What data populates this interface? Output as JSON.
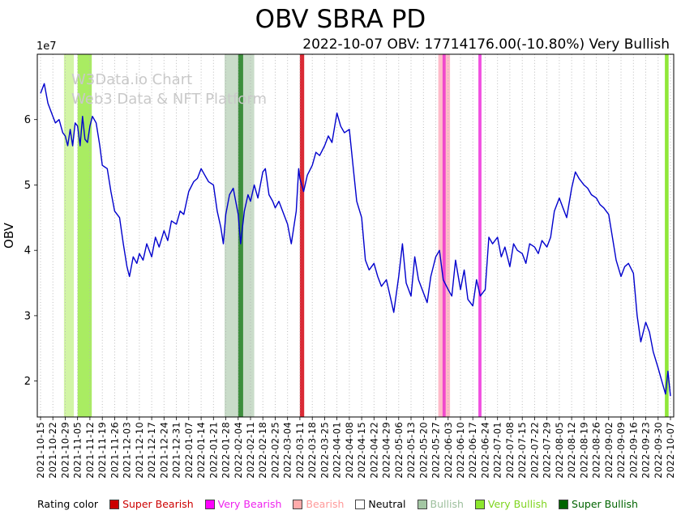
{
  "watermark": {
    "line1": "W3Data.io Chart",
    "line2": "Web3 Data & NFT Platform"
  },
  "legend": {
    "label": "Rating color",
    "items": [
      {
        "label": "Super Bearish",
        "color": "#cc0000",
        "text_color": "#cc0000"
      },
      {
        "label": "Very Bearish",
        "color": "#ff00ff",
        "text_color": "#ee22ee"
      },
      {
        "label": "Bearish",
        "color": "#ffaaaa",
        "text_color": "#ff9999"
      },
      {
        "label": "Neutral",
        "color": "#ffffff",
        "text_color": "#000000"
      },
      {
        "label": "Bullish",
        "color": "#a3c6a3",
        "text_color": "#9dbf9d"
      },
      {
        "label": "Very Bullish",
        "color": "#8ce62e",
        "text_color": "#7fd41f"
      },
      {
        "label": "Super Bullish",
        "color": "#006400",
        "text_color": "#006400"
      }
    ]
  },
  "chart_data": {
    "type": "line",
    "title": "OBV SBRA PD",
    "subtitle": "2022-10-07 OBV: 17714176.00(-10.80%) Very Bullish",
    "ylabel": "OBV",
    "y_multiplier_label": "1e7",
    "units": "1e7",
    "ylim": [
      1.45,
      7.0
    ],
    "y_ticks": [
      2,
      3,
      4,
      5,
      6
    ],
    "line_color": "#0000cd",
    "grid_color": "#b3b3b3",
    "grid": "vertical-dotted",
    "legend_position": "bottom",
    "x_unit": "weeks since first tick",
    "x_tick_labels": [
      "2021-10-15",
      "2021-10-22",
      "2021-10-29",
      "2021-11-05",
      "2021-11-12",
      "2021-11-19",
      "2021-11-26",
      "2021-12-03",
      "2021-12-10",
      "2021-12-17",
      "2021-12-24",
      "2021-12-31",
      "2022-01-07",
      "2022-01-14",
      "2022-01-21",
      "2022-01-28",
      "2022-02-04",
      "2022-02-11",
      "2022-02-18",
      "2022-02-25",
      "2022-03-04",
      "2022-03-11",
      "2022-03-18",
      "2022-03-25",
      "2022-04-01",
      "2022-04-08",
      "2022-04-15",
      "2022-04-22",
      "2022-04-29",
      "2022-05-06",
      "2022-05-13",
      "2022-05-20",
      "2022-05-27",
      "2022-06-03",
      "2022-06-10",
      "2022-06-17",
      "2022-06-24",
      "2022-07-01",
      "2022-07-08",
      "2022-07-15",
      "2022-07-22",
      "2022-07-29",
      "2022-08-05",
      "2022-08-12",
      "2022-08-19",
      "2022-08-26",
      "2022-09-02",
      "2022-09-09",
      "2022-09-16",
      "2022-09-23",
      "2022-09-30",
      "2022-10-07"
    ],
    "points": [
      [
        0,
        6.4
      ],
      [
        0.3,
        6.55
      ],
      [
        0.6,
        6.25
      ],
      [
        1,
        6.05
      ],
      [
        1.2,
        5.95
      ],
      [
        1.5,
        6.0
      ],
      [
        1.8,
        5.8
      ],
      [
        2,
        5.75
      ],
      [
        2.2,
        5.6
      ],
      [
        2.4,
        5.85
      ],
      [
        2.6,
        5.6
      ],
      [
        2.8,
        5.95
      ],
      [
        3,
        5.9
      ],
      [
        3.2,
        5.6
      ],
      [
        3.4,
        6.05
      ],
      [
        3.6,
        5.7
      ],
      [
        3.8,
        5.65
      ],
      [
        4,
        5.9
      ],
      [
        4.2,
        6.05
      ],
      [
        4.5,
        5.95
      ],
      [
        4.8,
        5.6
      ],
      [
        5,
        5.3
      ],
      [
        5.4,
        5.25
      ],
      [
        5.7,
        4.9
      ],
      [
        6,
        4.6
      ],
      [
        6.4,
        4.5
      ],
      [
        6.7,
        4.1
      ],
      [
        7,
        3.75
      ],
      [
        7.2,
        3.6
      ],
      [
        7.5,
        3.9
      ],
      [
        7.8,
        3.8
      ],
      [
        8,
        3.95
      ],
      [
        8.3,
        3.85
      ],
      [
        8.6,
        4.1
      ],
      [
        9,
        3.9
      ],
      [
        9.3,
        4.2
      ],
      [
        9.6,
        4.05
      ],
      [
        10,
        4.3
      ],
      [
        10.3,
        4.15
      ],
      [
        10.6,
        4.45
      ],
      [
        11,
        4.4
      ],
      [
        11.3,
        4.6
      ],
      [
        11.6,
        4.55
      ],
      [
        12,
        4.9
      ],
      [
        12.4,
        5.05
      ],
      [
        12.7,
        5.1
      ],
      [
        13,
        5.25
      ],
      [
        13.3,
        5.15
      ],
      [
        13.6,
        5.05
      ],
      [
        14,
        5.0
      ],
      [
        14.3,
        4.6
      ],
      [
        14.6,
        4.35
      ],
      [
        14.8,
        4.1
      ],
      [
        15,
        4.55
      ],
      [
        15.3,
        4.85
      ],
      [
        15.6,
        4.95
      ],
      [
        16,
        4.55
      ],
      [
        16.2,
        4.1
      ],
      [
        16.5,
        4.6
      ],
      [
        16.8,
        4.85
      ],
      [
        17,
        4.75
      ],
      [
        17.3,
        5.0
      ],
      [
        17.6,
        4.8
      ],
      [
        18,
        5.2
      ],
      [
        18.2,
        5.25
      ],
      [
        18.5,
        4.85
      ],
      [
        18.8,
        4.75
      ],
      [
        19,
        4.65
      ],
      [
        19.3,
        4.75
      ],
      [
        19.6,
        4.6
      ],
      [
        20,
        4.4
      ],
      [
        20.3,
        4.1
      ],
      [
        20.7,
        4.6
      ],
      [
        20.9,
        5.25
      ],
      [
        21,
        5.1
      ],
      [
        21.3,
        4.9
      ],
      [
        21.6,
        5.15
      ],
      [
        22,
        5.3
      ],
      [
        22.3,
        5.5
      ],
      [
        22.6,
        5.45
      ],
      [
        23,
        5.6
      ],
      [
        23.3,
        5.75
      ],
      [
        23.6,
        5.65
      ],
      [
        24,
        6.1
      ],
      [
        24.3,
        5.9
      ],
      [
        24.6,
        5.8
      ],
      [
        25,
        5.85
      ],
      [
        25.3,
        5.3
      ],
      [
        25.6,
        4.75
      ],
      [
        26,
        4.5
      ],
      [
        26.3,
        3.85
      ],
      [
        26.6,
        3.7
      ],
      [
        27,
        3.8
      ],
      [
        27.3,
        3.6
      ],
      [
        27.6,
        3.45
      ],
      [
        28,
        3.55
      ],
      [
        28.3,
        3.3
      ],
      [
        28.6,
        3.05
      ],
      [
        29,
        3.6
      ],
      [
        29.3,
        4.1
      ],
      [
        29.6,
        3.5
      ],
      [
        30,
        3.3
      ],
      [
        30.3,
        3.9
      ],
      [
        30.6,
        3.55
      ],
      [
        31,
        3.35
      ],
      [
        31.3,
        3.2
      ],
      [
        31.6,
        3.6
      ],
      [
        32,
        3.9
      ],
      [
        32.3,
        4.0
      ],
      [
        32.6,
        3.55
      ],
      [
        33,
        3.4
      ],
      [
        33.3,
        3.3
      ],
      [
        33.6,
        3.85
      ],
      [
        34,
        3.4
      ],
      [
        34.3,
        3.7
      ],
      [
        34.6,
        3.25
      ],
      [
        35,
        3.15
      ],
      [
        35.3,
        3.55
      ],
      [
        35.6,
        3.3
      ],
      [
        36,
        3.4
      ],
      [
        36.3,
        4.2
      ],
      [
        36.6,
        4.1
      ],
      [
        37,
        4.2
      ],
      [
        37.3,
        3.9
      ],
      [
        37.6,
        4.05
      ],
      [
        38,
        3.75
      ],
      [
        38.3,
        4.1
      ],
      [
        38.6,
        4.0
      ],
      [
        39,
        3.95
      ],
      [
        39.3,
        3.8
      ],
      [
        39.6,
        4.1
      ],
      [
        40,
        4.05
      ],
      [
        40.3,
        3.95
      ],
      [
        40.6,
        4.15
      ],
      [
        41,
        4.05
      ],
      [
        41.3,
        4.2
      ],
      [
        41.6,
        4.6
      ],
      [
        42,
        4.8
      ],
      [
        42.3,
        4.65
      ],
      [
        42.6,
        4.5
      ],
      [
        43,
        4.95
      ],
      [
        43.3,
        5.2
      ],
      [
        43.6,
        5.1
      ],
      [
        44,
        5.0
      ],
      [
        44.3,
        4.95
      ],
      [
        44.6,
        4.85
      ],
      [
        45,
        4.8
      ],
      [
        45.3,
        4.7
      ],
      [
        45.6,
        4.65
      ],
      [
        46,
        4.55
      ],
      [
        46.3,
        4.2
      ],
      [
        46.6,
        3.85
      ],
      [
        47,
        3.6
      ],
      [
        47.3,
        3.75
      ],
      [
        47.6,
        3.8
      ],
      [
        48,
        3.65
      ],
      [
        48.3,
        3.0
      ],
      [
        48.6,
        2.6
      ],
      [
        49,
        2.9
      ],
      [
        49.3,
        2.75
      ],
      [
        49.6,
        2.45
      ],
      [
        50,
        2.2
      ],
      [
        50.3,
        2.0
      ],
      [
        50.6,
        1.8
      ],
      [
        50.8,
        2.15
      ],
      [
        51,
        1.77
      ]
    ],
    "bands": [
      {
        "x_from": 1.9,
        "x_to": 2.7,
        "rating": "Very Bullish",
        "color": "#9be838",
        "opacity": 0.45
      },
      {
        "x_from": 3.0,
        "x_to": 4.15,
        "rating": "Very Bullish",
        "color": "#8ce62e",
        "opacity": 0.75
      },
      {
        "x_from": 14.9,
        "x_to": 17.3,
        "rating": "Bullish",
        "color": "#9dbf9d",
        "opacity": 0.55
      },
      {
        "x_from": 16.0,
        "x_to": 16.4,
        "rating": "Super Bullish",
        "color": "#1a7a1a",
        "opacity": 0.8
      },
      {
        "x_from": 21.0,
        "x_to": 21.35,
        "rating": "Super Bearish",
        "color": "#d81f2a",
        "opacity": 0.95
      },
      {
        "x_from": 32.2,
        "x_to": 33.15,
        "rating": "Bearish",
        "color": "#ffaebf",
        "opacity": 0.85
      },
      {
        "x_from": 32.55,
        "x_to": 32.8,
        "rating": "Very Bearish",
        "color": "#ee3ccc",
        "opacity": 0.9
      },
      {
        "x_from": 35.45,
        "x_to": 35.7,
        "rating": "Very Bearish",
        "color": "#ee3cdd",
        "opacity": 0.9
      },
      {
        "x_from": 50.55,
        "x_to": 50.85,
        "rating": "Very Bullish",
        "color": "#8ae62e",
        "opacity": 0.95
      }
    ]
  }
}
